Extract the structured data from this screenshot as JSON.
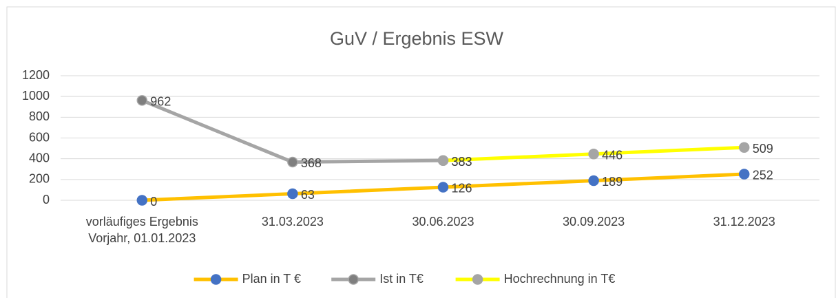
{
  "chart_data": {
    "type": "line",
    "title": "GuV / Ergebnis ESW",
    "categories": [
      "vorläufiges Ergebnis Vorjahr, 01.01.2023",
      "31.03.2023",
      "30.06.2023",
      "30.09.2023",
      "31.12.2023"
    ],
    "series": [
      {
        "name": "Plan in T €",
        "color": "#FFC000",
        "marker_color": "#4472C4",
        "values": [
          0,
          63,
          126,
          189,
          252
        ]
      },
      {
        "name": "Ist in T€",
        "color": "#A5A5A5",
        "marker_color": "#7F7F7F",
        "values": [
          962,
          368,
          383,
          null,
          null
        ]
      },
      {
        "name": "Hochrechnung in T€",
        "color": "#FFFF00",
        "marker_color": "#A5A5A5",
        "values": [
          null,
          null,
          383,
          446,
          509
        ]
      }
    ],
    "ylim": [
      0,
      1200
    ],
    "yticks": [
      0,
      200,
      400,
      600,
      800,
      1000,
      1200
    ],
    "grid": true,
    "legend": "bottom"
  }
}
